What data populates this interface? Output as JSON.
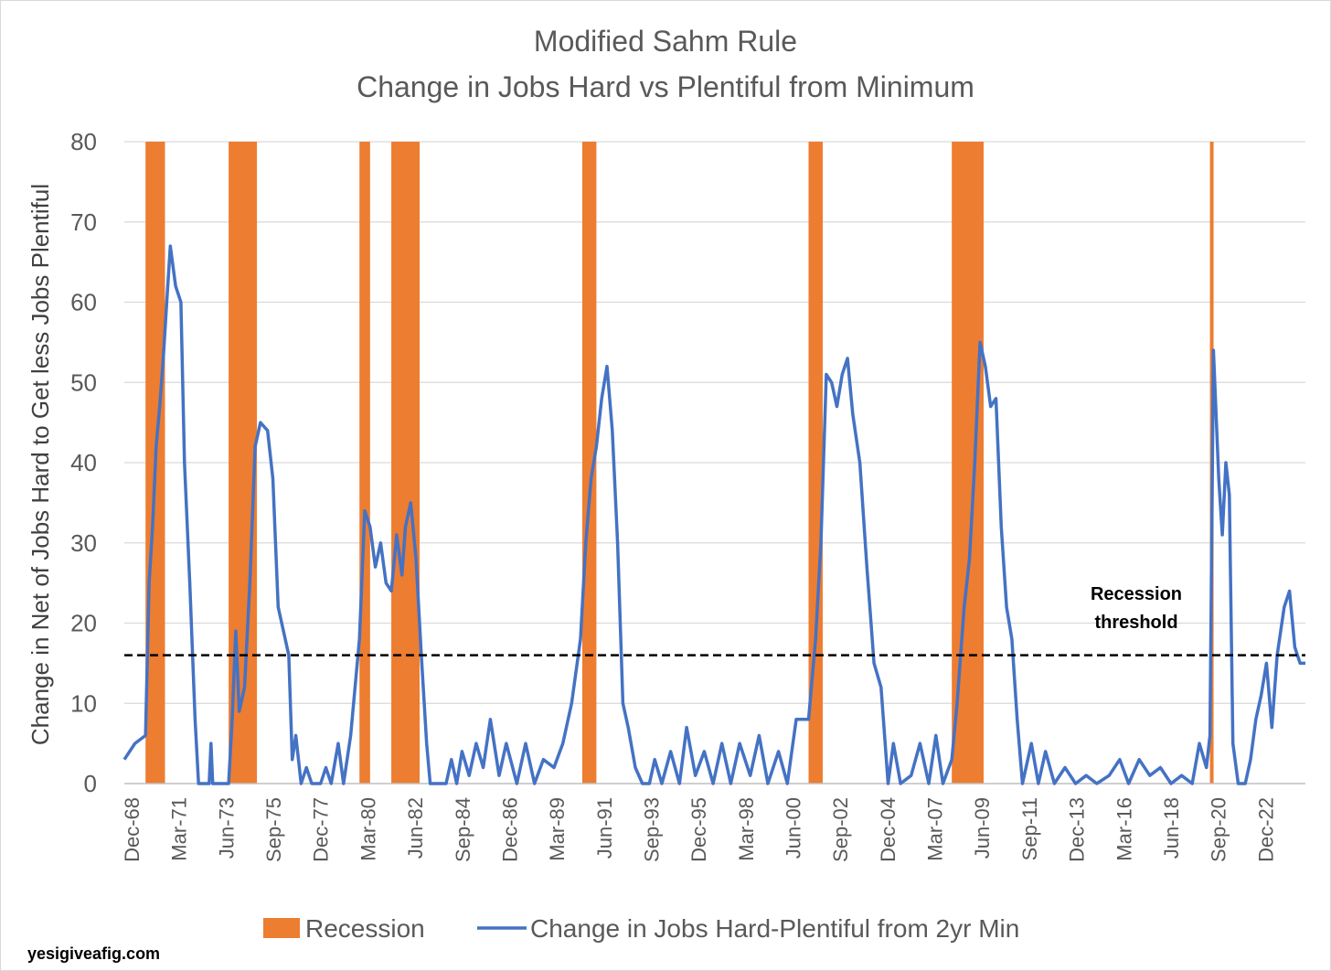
{
  "chart_data": {
    "type": "line",
    "title": "Modified Sahm Rule",
    "subtitle": "Change in Jobs Hard vs Plentiful from Minimum",
    "ylabel": "Change in Net of Jobs Hard to Get less Jobs Plentiful",
    "xlabel": "",
    "ylim": [
      0,
      80
    ],
    "yticks": [
      0,
      10,
      20,
      30,
      40,
      50,
      60,
      70,
      80
    ],
    "xlim": [
      "1968-12",
      "2024-08"
    ],
    "xtick_labels": [
      "Dec-68",
      "Mar-71",
      "Jun-73",
      "Sep-75",
      "Dec-77",
      "Mar-80",
      "Jun-82",
      "Sep-84",
      "Dec-86",
      "Mar-89",
      "Jun-91",
      "Sep-93",
      "Dec-95",
      "Mar-98",
      "Jun-00",
      "Sep-02",
      "Dec-04",
      "Mar-07",
      "Jun-09",
      "Sep-11",
      "Dec-13",
      "Mar-16",
      "Jun-18",
      "Sep-20",
      "Dec-22"
    ],
    "grid": true,
    "legend_position": "bottom",
    "threshold": {
      "value": 16,
      "label_line1": "Recession",
      "label_line2": "threshold"
    },
    "recessions": {
      "name": "Recession",
      "color": "#ED7D31",
      "periods": [
        [
          "1969-12",
          "1970-11"
        ],
        [
          "1973-11",
          "1975-03"
        ],
        [
          "1980-01",
          "1980-07"
        ],
        [
          "1981-07",
          "1982-11"
        ],
        [
          "1990-07",
          "1991-03"
        ],
        [
          "2001-03",
          "2001-11"
        ],
        [
          "2007-12",
          "2009-06"
        ],
        [
          "2020-02",
          "2020-04"
        ]
      ]
    },
    "series": [
      {
        "name": "Change in Jobs Hard-Plentiful from 2yr Min",
        "color": "#4472C4",
        "points": [
          [
            "1968-12",
            3
          ],
          [
            "1969-06",
            5
          ],
          [
            "1969-12",
            6
          ],
          [
            "1970-02",
            25
          ],
          [
            "1970-04",
            32
          ],
          [
            "1970-06",
            42
          ],
          [
            "1970-08",
            47
          ],
          [
            "1970-10",
            53
          ],
          [
            "1970-12",
            60
          ],
          [
            "1971-02",
            67
          ],
          [
            "1971-05",
            62
          ],
          [
            "1971-08",
            60
          ],
          [
            "1971-10",
            40
          ],
          [
            "1972-01",
            25
          ],
          [
            "1972-04",
            8
          ],
          [
            "1972-06",
            0
          ],
          [
            "1972-12",
            0
          ],
          [
            "1973-01",
            5
          ],
          [
            "1973-02",
            0
          ],
          [
            "1973-11",
            0
          ],
          [
            "1974-01",
            8
          ],
          [
            "1974-03",
            19
          ],
          [
            "1974-05",
            9
          ],
          [
            "1974-08",
            12
          ],
          [
            "1974-11",
            25
          ],
          [
            "1975-02",
            42
          ],
          [
            "1975-05",
            45
          ],
          [
            "1975-09",
            44
          ],
          [
            "1975-12",
            38
          ],
          [
            "1976-03",
            22
          ],
          [
            "1976-06",
            19
          ],
          [
            "1976-09",
            16
          ],
          [
            "1976-11",
            3
          ],
          [
            "1977-01",
            6
          ],
          [
            "1977-04",
            0
          ],
          [
            "1977-07",
            2
          ],
          [
            "1977-10",
            0
          ],
          [
            "1978-03",
            0
          ],
          [
            "1978-06",
            2
          ],
          [
            "1978-09",
            0
          ],
          [
            "1979-01",
            5
          ],
          [
            "1979-04",
            0
          ],
          [
            "1979-08",
            6
          ],
          [
            "1980-01",
            18
          ],
          [
            "1980-04",
            34
          ],
          [
            "1980-07",
            32
          ],
          [
            "1980-10",
            27
          ],
          [
            "1981-01",
            30
          ],
          [
            "1981-04",
            25
          ],
          [
            "1981-07",
            24
          ],
          [
            "1981-10",
            31
          ],
          [
            "1982-01",
            26
          ],
          [
            "1982-03",
            32
          ],
          [
            "1982-06",
            35
          ],
          [
            "1982-09",
            28
          ],
          [
            "1982-12",
            16
          ],
          [
            "1983-03",
            5
          ],
          [
            "1983-05",
            0
          ],
          [
            "1984-02",
            0
          ],
          [
            "1984-05",
            3
          ],
          [
            "1984-08",
            0
          ],
          [
            "1984-11",
            4
          ],
          [
            "1985-03",
            1
          ],
          [
            "1985-07",
            5
          ],
          [
            "1985-11",
            2
          ],
          [
            "1986-03",
            8
          ],
          [
            "1986-08",
            1
          ],
          [
            "1986-12",
            5
          ],
          [
            "1987-06",
            0
          ],
          [
            "1987-11",
            5
          ],
          [
            "1988-04",
            0
          ],
          [
            "1988-09",
            3
          ],
          [
            "1989-03",
            2
          ],
          [
            "1989-08",
            5
          ],
          [
            "1990-01",
            10
          ],
          [
            "1990-06",
            18
          ],
          [
            "1990-09",
            30
          ],
          [
            "1990-12",
            38
          ],
          [
            "1991-03",
            42
          ],
          [
            "1991-06",
            48
          ],
          [
            "1991-09",
            52
          ],
          [
            "1991-12",
            44
          ],
          [
            "1992-03",
            30
          ],
          [
            "1992-06",
            10
          ],
          [
            "1992-09",
            7
          ],
          [
            "1993-01",
            2
          ],
          [
            "1993-05",
            0
          ],
          [
            "1993-09",
            0
          ],
          [
            "1993-12",
            3
          ],
          [
            "1994-04",
            0
          ],
          [
            "1994-09",
            4
          ],
          [
            "1995-02",
            0
          ],
          [
            "1995-06",
            7
          ],
          [
            "1995-11",
            1
          ],
          [
            "1996-04",
            4
          ],
          [
            "1996-09",
            0
          ],
          [
            "1997-02",
            5
          ],
          [
            "1997-07",
            0
          ],
          [
            "1997-12",
            5
          ],
          [
            "1998-06",
            1
          ],
          [
            "1998-11",
            6
          ],
          [
            "1999-04",
            0
          ],
          [
            "1999-10",
            4
          ],
          [
            "2000-03",
            0
          ],
          [
            "2000-08",
            8
          ],
          [
            "2001-03",
            8
          ],
          [
            "2001-07",
            18
          ],
          [
            "2001-10",
            30
          ],
          [
            "2002-01",
            51
          ],
          [
            "2002-04",
            50
          ],
          [
            "2002-07",
            47
          ],
          [
            "2002-10",
            51
          ],
          [
            "2003-01",
            53
          ],
          [
            "2003-04",
            46
          ],
          [
            "2003-08",
            40
          ],
          [
            "2003-12",
            27
          ],
          [
            "2004-04",
            15
          ],
          [
            "2004-08",
            12
          ],
          [
            "2004-12",
            0
          ],
          [
            "2005-03",
            5
          ],
          [
            "2005-07",
            0
          ],
          [
            "2006-01",
            1
          ],
          [
            "2006-06",
            5
          ],
          [
            "2006-11",
            0
          ],
          [
            "2007-03",
            6
          ],
          [
            "2007-07",
            0
          ],
          [
            "2007-12",
            3
          ],
          [
            "2008-03",
            10
          ],
          [
            "2008-07",
            22
          ],
          [
            "2008-10",
            28
          ],
          [
            "2009-01",
            40
          ],
          [
            "2009-04",
            55
          ],
          [
            "2009-07",
            52
          ],
          [
            "2009-10",
            47
          ],
          [
            "2010-01",
            48
          ],
          [
            "2010-04",
            32
          ],
          [
            "2010-07",
            22
          ],
          [
            "2010-10",
            18
          ],
          [
            "2011-01",
            8
          ],
          [
            "2011-04",
            0
          ],
          [
            "2011-09",
            5
          ],
          [
            "2012-01",
            0
          ],
          [
            "2012-05",
            4
          ],
          [
            "2012-10",
            0
          ],
          [
            "2013-04",
            2
          ],
          [
            "2013-10",
            0
          ],
          [
            "2014-04",
            1
          ],
          [
            "2014-10",
            0
          ],
          [
            "2015-05",
            1
          ],
          [
            "2015-11",
            3
          ],
          [
            "2016-04",
            0
          ],
          [
            "2016-10",
            3
          ],
          [
            "2017-04",
            1
          ],
          [
            "2017-10",
            2
          ],
          [
            "2018-04",
            0
          ],
          [
            "2018-10",
            1
          ],
          [
            "2019-04",
            0
          ],
          [
            "2019-08",
            5
          ],
          [
            "2019-12",
            2
          ],
          [
            "2020-02",
            6
          ],
          [
            "2020-04",
            54
          ],
          [
            "2020-07",
            38
          ],
          [
            "2020-09",
            31
          ],
          [
            "2020-11",
            40
          ],
          [
            "2021-01",
            36
          ],
          [
            "2021-03",
            5
          ],
          [
            "2021-06",
            0
          ],
          [
            "2021-10",
            0
          ],
          [
            "2022-01",
            3
          ],
          [
            "2022-04",
            8
          ],
          [
            "2022-07",
            11
          ],
          [
            "2022-10",
            15
          ],
          [
            "2023-01",
            7
          ],
          [
            "2023-04",
            16
          ],
          [
            "2023-08",
            22
          ],
          [
            "2023-11",
            24
          ],
          [
            "2024-02",
            17
          ],
          [
            "2024-05",
            15
          ],
          [
            "2024-08",
            15
          ]
        ]
      }
    ]
  },
  "watermark": "yesigiveafig.com"
}
